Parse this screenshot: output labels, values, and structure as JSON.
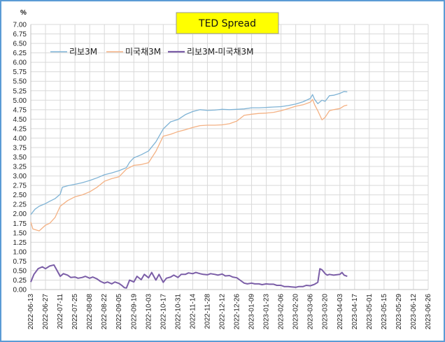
{
  "chart_data": {
    "type": "line",
    "title": "TED Spread",
    "ylabel": "%",
    "xlabel": "",
    "ylim": [
      0,
      7
    ],
    "ytick_step": 0.25,
    "grid": true,
    "legend_position": "top-left",
    "background": "#ffffff",
    "title_box_color": "#ffff00",
    "x_range": [
      "2022-06-13",
      "2023-06-26"
    ],
    "xticks": [
      "2022-06-13",
      "2022-06-27",
      "2022-07-11",
      "2022-07-25",
      "2022-08-08",
      "2022-08-22",
      "2022-09-05",
      "2022-09-19",
      "2022-10-03",
      "2022-10-17",
      "2022-10-31",
      "2022-11-14",
      "2022-11-28",
      "2022-12-12",
      "2022-12-26",
      "2023-01-09",
      "2023-01-23",
      "2023-02-06",
      "2023-02-20",
      "2023-03-06",
      "2023-03-20",
      "2023-04-03",
      "2023-04-17",
      "2023-05-01",
      "2023-05-15",
      "2023-05-29",
      "2023-06-12",
      "2023-06-26"
    ],
    "series": [
      {
        "name": "리보3M",
        "color": "#7fb3d5",
        "points": [
          [
            "2022-06-13",
            1.98
          ],
          [
            "2022-06-17",
            2.12
          ],
          [
            "2022-06-21",
            2.2
          ],
          [
            "2022-06-27",
            2.27
          ],
          [
            "2022-07-01",
            2.33
          ],
          [
            "2022-07-06",
            2.4
          ],
          [
            "2022-07-11",
            2.52
          ],
          [
            "2022-07-13",
            2.7
          ],
          [
            "2022-07-18",
            2.74
          ],
          [
            "2022-07-25",
            2.78
          ],
          [
            "2022-08-01",
            2.82
          ],
          [
            "2022-08-08",
            2.88
          ],
          [
            "2022-08-15",
            2.95
          ],
          [
            "2022-08-22",
            3.03
          ],
          [
            "2022-08-29",
            3.08
          ],
          [
            "2022-09-05",
            3.14
          ],
          [
            "2022-09-12",
            3.22
          ],
          [
            "2022-09-15",
            3.36
          ],
          [
            "2022-09-19",
            3.48
          ],
          [
            "2022-09-26",
            3.56
          ],
          [
            "2022-10-03",
            3.66
          ],
          [
            "2022-10-10",
            3.9
          ],
          [
            "2022-10-17",
            4.24
          ],
          [
            "2022-10-24",
            4.43
          ],
          [
            "2022-10-31",
            4.49
          ],
          [
            "2022-11-07",
            4.62
          ],
          [
            "2022-11-14",
            4.7
          ],
          [
            "2022-11-21",
            4.75
          ],
          [
            "2022-11-28",
            4.73
          ],
          [
            "2022-12-05",
            4.74
          ],
          [
            "2022-12-12",
            4.76
          ],
          [
            "2022-12-19",
            4.75
          ],
          [
            "2022-12-26",
            4.76
          ],
          [
            "2023-01-02",
            4.77
          ],
          [
            "2023-01-09",
            4.8
          ],
          [
            "2023-01-16",
            4.8
          ],
          [
            "2023-01-23",
            4.81
          ],
          [
            "2023-01-30",
            4.82
          ],
          [
            "2023-02-06",
            4.83
          ],
          [
            "2023-02-13",
            4.86
          ],
          [
            "2023-02-20",
            4.9
          ],
          [
            "2023-02-27",
            4.96
          ],
          [
            "2023-03-06",
            5.05
          ],
          [
            "2023-03-08",
            5.15
          ],
          [
            "2023-03-10",
            5.02
          ],
          [
            "2023-03-13",
            4.91
          ],
          [
            "2023-03-17",
            5.0
          ],
          [
            "2023-03-20",
            4.97
          ],
          [
            "2023-03-24",
            5.12
          ],
          [
            "2023-03-28",
            5.13
          ],
          [
            "2023-04-03",
            5.18
          ],
          [
            "2023-04-07",
            5.23
          ],
          [
            "2023-04-10",
            5.22
          ]
        ]
      },
      {
        "name": "미국채3M",
        "color": "#f4b183",
        "points": [
          [
            "2022-06-13",
            1.78
          ],
          [
            "2022-06-15",
            1.6
          ],
          [
            "2022-06-21",
            1.55
          ],
          [
            "2022-06-27",
            1.7
          ],
          [
            "2022-07-01",
            1.75
          ],
          [
            "2022-07-06",
            1.9
          ],
          [
            "2022-07-11",
            2.2
          ],
          [
            "2022-07-18",
            2.35
          ],
          [
            "2022-07-25",
            2.45
          ],
          [
            "2022-08-01",
            2.5
          ],
          [
            "2022-08-08",
            2.58
          ],
          [
            "2022-08-15",
            2.7
          ],
          [
            "2022-08-22",
            2.86
          ],
          [
            "2022-08-29",
            2.93
          ],
          [
            "2022-09-05",
            2.98
          ],
          [
            "2022-09-12",
            3.18
          ],
          [
            "2022-09-19",
            3.28
          ],
          [
            "2022-09-26",
            3.3
          ],
          [
            "2022-10-03",
            3.35
          ],
          [
            "2022-10-10",
            3.65
          ],
          [
            "2022-10-17",
            4.05
          ],
          [
            "2022-10-24",
            4.1
          ],
          [
            "2022-10-31",
            4.17
          ],
          [
            "2022-11-07",
            4.22
          ],
          [
            "2022-11-14",
            4.28
          ],
          [
            "2022-11-21",
            4.33
          ],
          [
            "2022-11-28",
            4.34
          ],
          [
            "2022-12-05",
            4.34
          ],
          [
            "2022-12-12",
            4.35
          ],
          [
            "2022-12-19",
            4.38
          ],
          [
            "2022-12-26",
            4.45
          ],
          [
            "2023-01-02",
            4.6
          ],
          [
            "2023-01-09",
            4.63
          ],
          [
            "2023-01-16",
            4.65
          ],
          [
            "2023-01-23",
            4.66
          ],
          [
            "2023-01-30",
            4.68
          ],
          [
            "2023-02-06",
            4.72
          ],
          [
            "2023-02-13",
            4.78
          ],
          [
            "2023-02-20",
            4.84
          ],
          [
            "2023-02-27",
            4.88
          ],
          [
            "2023-03-06",
            4.95
          ],
          [
            "2023-03-08",
            5.02
          ],
          [
            "2023-03-10",
            4.88
          ],
          [
            "2023-03-13",
            4.72
          ],
          [
            "2023-03-17",
            4.48
          ],
          [
            "2023-03-20",
            4.55
          ],
          [
            "2023-03-24",
            4.72
          ],
          [
            "2023-03-28",
            4.75
          ],
          [
            "2023-04-03",
            4.78
          ],
          [
            "2023-04-07",
            4.85
          ],
          [
            "2023-04-10",
            4.87
          ]
        ]
      },
      {
        "name": "리보3M-미국채3M",
        "color": "#7b5ea7",
        "points": [
          [
            "2022-06-13",
            0.2
          ],
          [
            "2022-06-16",
            0.4
          ],
          [
            "2022-06-20",
            0.55
          ],
          [
            "2022-06-24",
            0.6
          ],
          [
            "2022-06-27",
            0.55
          ],
          [
            "2022-07-01",
            0.62
          ],
          [
            "2022-07-05",
            0.65
          ],
          [
            "2022-07-08",
            0.5
          ],
          [
            "2022-07-11",
            0.35
          ],
          [
            "2022-07-14",
            0.42
          ],
          [
            "2022-07-18",
            0.38
          ],
          [
            "2022-07-21",
            0.32
          ],
          [
            "2022-07-25",
            0.33
          ],
          [
            "2022-07-28",
            0.3
          ],
          [
            "2022-08-01",
            0.32
          ],
          [
            "2022-08-04",
            0.35
          ],
          [
            "2022-08-08",
            0.3
          ],
          [
            "2022-08-11",
            0.33
          ],
          [
            "2022-08-15",
            0.28
          ],
          [
            "2022-08-18",
            0.22
          ],
          [
            "2022-08-22",
            0.17
          ],
          [
            "2022-08-25",
            0.2
          ],
          [
            "2022-08-29",
            0.15
          ],
          [
            "2022-09-01",
            0.2
          ],
          [
            "2022-09-05",
            0.16
          ],
          [
            "2022-09-08",
            0.1
          ],
          [
            "2022-09-10",
            0.05
          ],
          [
            "2022-09-12",
            0.04
          ],
          [
            "2022-09-15",
            0.25
          ],
          [
            "2022-09-19",
            0.2
          ],
          [
            "2022-09-22",
            0.35
          ],
          [
            "2022-09-26",
            0.26
          ],
          [
            "2022-09-29",
            0.4
          ],
          [
            "2022-10-03",
            0.31
          ],
          [
            "2022-10-06",
            0.45
          ],
          [
            "2022-10-10",
            0.25
          ],
          [
            "2022-10-13",
            0.4
          ],
          [
            "2022-10-17",
            0.19
          ],
          [
            "2022-10-20",
            0.3
          ],
          [
            "2022-10-24",
            0.33
          ],
          [
            "2022-10-27",
            0.38
          ],
          [
            "2022-10-31",
            0.32
          ],
          [
            "2022-11-03",
            0.4
          ],
          [
            "2022-11-07",
            0.4
          ],
          [
            "2022-11-10",
            0.44
          ],
          [
            "2022-11-14",
            0.42
          ],
          [
            "2022-11-17",
            0.45
          ],
          [
            "2022-11-21",
            0.42
          ],
          [
            "2022-11-24",
            0.4
          ],
          [
            "2022-11-28",
            0.39
          ],
          [
            "2022-12-01",
            0.42
          ],
          [
            "2022-12-05",
            0.4
          ],
          [
            "2022-12-08",
            0.38
          ],
          [
            "2022-12-12",
            0.41
          ],
          [
            "2022-12-15",
            0.36
          ],
          [
            "2022-12-19",
            0.37
          ],
          [
            "2022-12-22",
            0.33
          ],
          [
            "2022-12-26",
            0.31
          ],
          [
            "2022-12-29",
            0.25
          ],
          [
            "2023-01-02",
            0.17
          ],
          [
            "2023-01-05",
            0.15
          ],
          [
            "2023-01-09",
            0.17
          ],
          [
            "2023-01-12",
            0.15
          ],
          [
            "2023-01-16",
            0.15
          ],
          [
            "2023-01-19",
            0.13
          ],
          [
            "2023-01-23",
            0.15
          ],
          [
            "2023-01-26",
            0.14
          ],
          [
            "2023-01-30",
            0.14
          ],
          [
            "2023-02-02",
            0.11
          ],
          [
            "2023-02-06",
            0.11
          ],
          [
            "2023-02-09",
            0.08
          ],
          [
            "2023-02-13",
            0.08
          ],
          [
            "2023-02-16",
            0.07
          ],
          [
            "2023-02-20",
            0.06
          ],
          [
            "2023-02-23",
            0.08
          ],
          [
            "2023-02-27",
            0.08
          ],
          [
            "2023-03-02",
            0.11
          ],
          [
            "2023-03-06",
            0.1
          ],
          [
            "2023-03-09",
            0.13
          ],
          [
            "2023-03-10",
            0.14
          ],
          [
            "2023-03-13",
            0.19
          ],
          [
            "2023-03-15",
            0.55
          ],
          [
            "2023-03-17",
            0.52
          ],
          [
            "2023-03-20",
            0.42
          ],
          [
            "2023-03-22",
            0.38
          ],
          [
            "2023-03-24",
            0.4
          ],
          [
            "2023-03-28",
            0.38
          ],
          [
            "2023-04-03",
            0.4
          ],
          [
            "2023-04-05",
            0.45
          ],
          [
            "2023-04-07",
            0.38
          ],
          [
            "2023-04-10",
            0.35
          ]
        ]
      }
    ]
  }
}
